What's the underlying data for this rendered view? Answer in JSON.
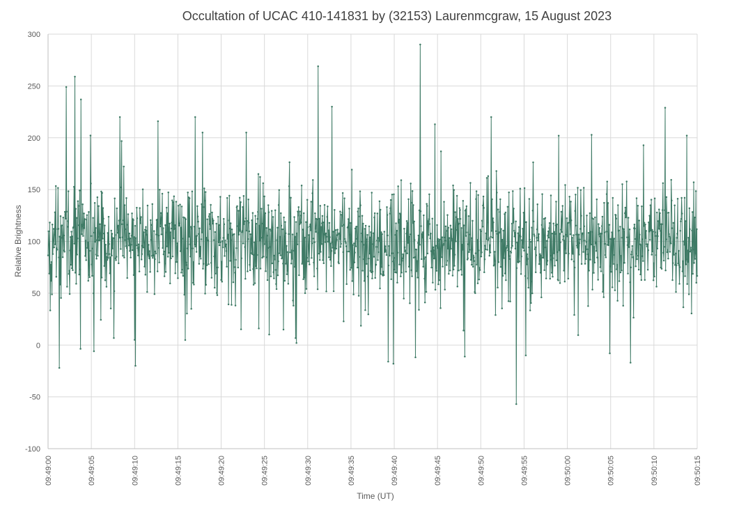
{
  "chart_data": {
    "type": "line",
    "title": "Occultation of UCAC 410-141831 by (32153) Laurenmcgraw, 15 August 2023",
    "xlabel": "Time (UT)",
    "ylabel": "Relative Brightness",
    "ylim": [
      -100,
      300
    ],
    "yticks": [
      "300",
      "250",
      "200",
      "150",
      "100",
      "50",
      "0",
      "-50",
      "-100"
    ],
    "xlim_seconds": [
      0,
      75
    ],
    "xticks": [
      "09:49:00",
      "09:49:05",
      "09:49:10",
      "09:49:15",
      "09:49:20",
      "09:49:25",
      "09:49:30",
      "09:49:35",
      "09:49:40",
      "09:49:45",
      "09:49:50",
      "09:49:55",
      "09:50:00",
      "09:50:05",
      "09:50:10",
      "09:50:15"
    ],
    "grid": true,
    "legend": "none",
    "series_color": "#3e7a65",
    "series": [
      {
        "x_start": "09:49:00",
        "interval_seconds": 0.05,
        "points_per_second": 20,
        "typical_mean": 100,
        "typical_spread": 25,
        "notable_points": [
          {
            "t": "09:49:01.3",
            "y": -22
          },
          {
            "t": "09:49:02.1",
            "y": 249
          },
          {
            "t": "09:49:03.1",
            "y": 259
          },
          {
            "t": "09:49:03.8",
            "y": 237
          },
          {
            "t": "09:49:05.3",
            "y": -6
          },
          {
            "t": "09:49:08.3",
            "y": 220
          },
          {
            "t": "09:49:10.0",
            "y": 5
          },
          {
            "t": "09:49:12.7",
            "y": 216
          },
          {
            "t": "09:49:17.0",
            "y": 220
          },
          {
            "t": "09:49:22.9",
            "y": 205
          },
          {
            "t": "09:49:28.7",
            "y": 2
          },
          {
            "t": "09:49:31.2",
            "y": 269
          },
          {
            "t": "09:49:32.8",
            "y": 230
          },
          {
            "t": "09:49:39.3",
            "y": -16
          },
          {
            "t": "09:49:39.9",
            "y": -18
          },
          {
            "t": "09:49:43.0",
            "y": 290
          },
          {
            "t": "09:49:44.7",
            "y": 213
          },
          {
            "t": "09:49:48.0",
            "y": 14
          },
          {
            "t": "09:49:51.2",
            "y": 220
          },
          {
            "t": "09:49:54.1",
            "y": -57
          },
          {
            "t": "09:49:55.2",
            "y": -10
          },
          {
            "t": "09:49:59.0",
            "y": 202
          },
          {
            "t": "09:50:04.9",
            "y": -8
          },
          {
            "t": "09:50:07.3",
            "y": -17
          },
          {
            "t": "09:50:11.3",
            "y": 229
          }
        ]
      }
    ]
  }
}
